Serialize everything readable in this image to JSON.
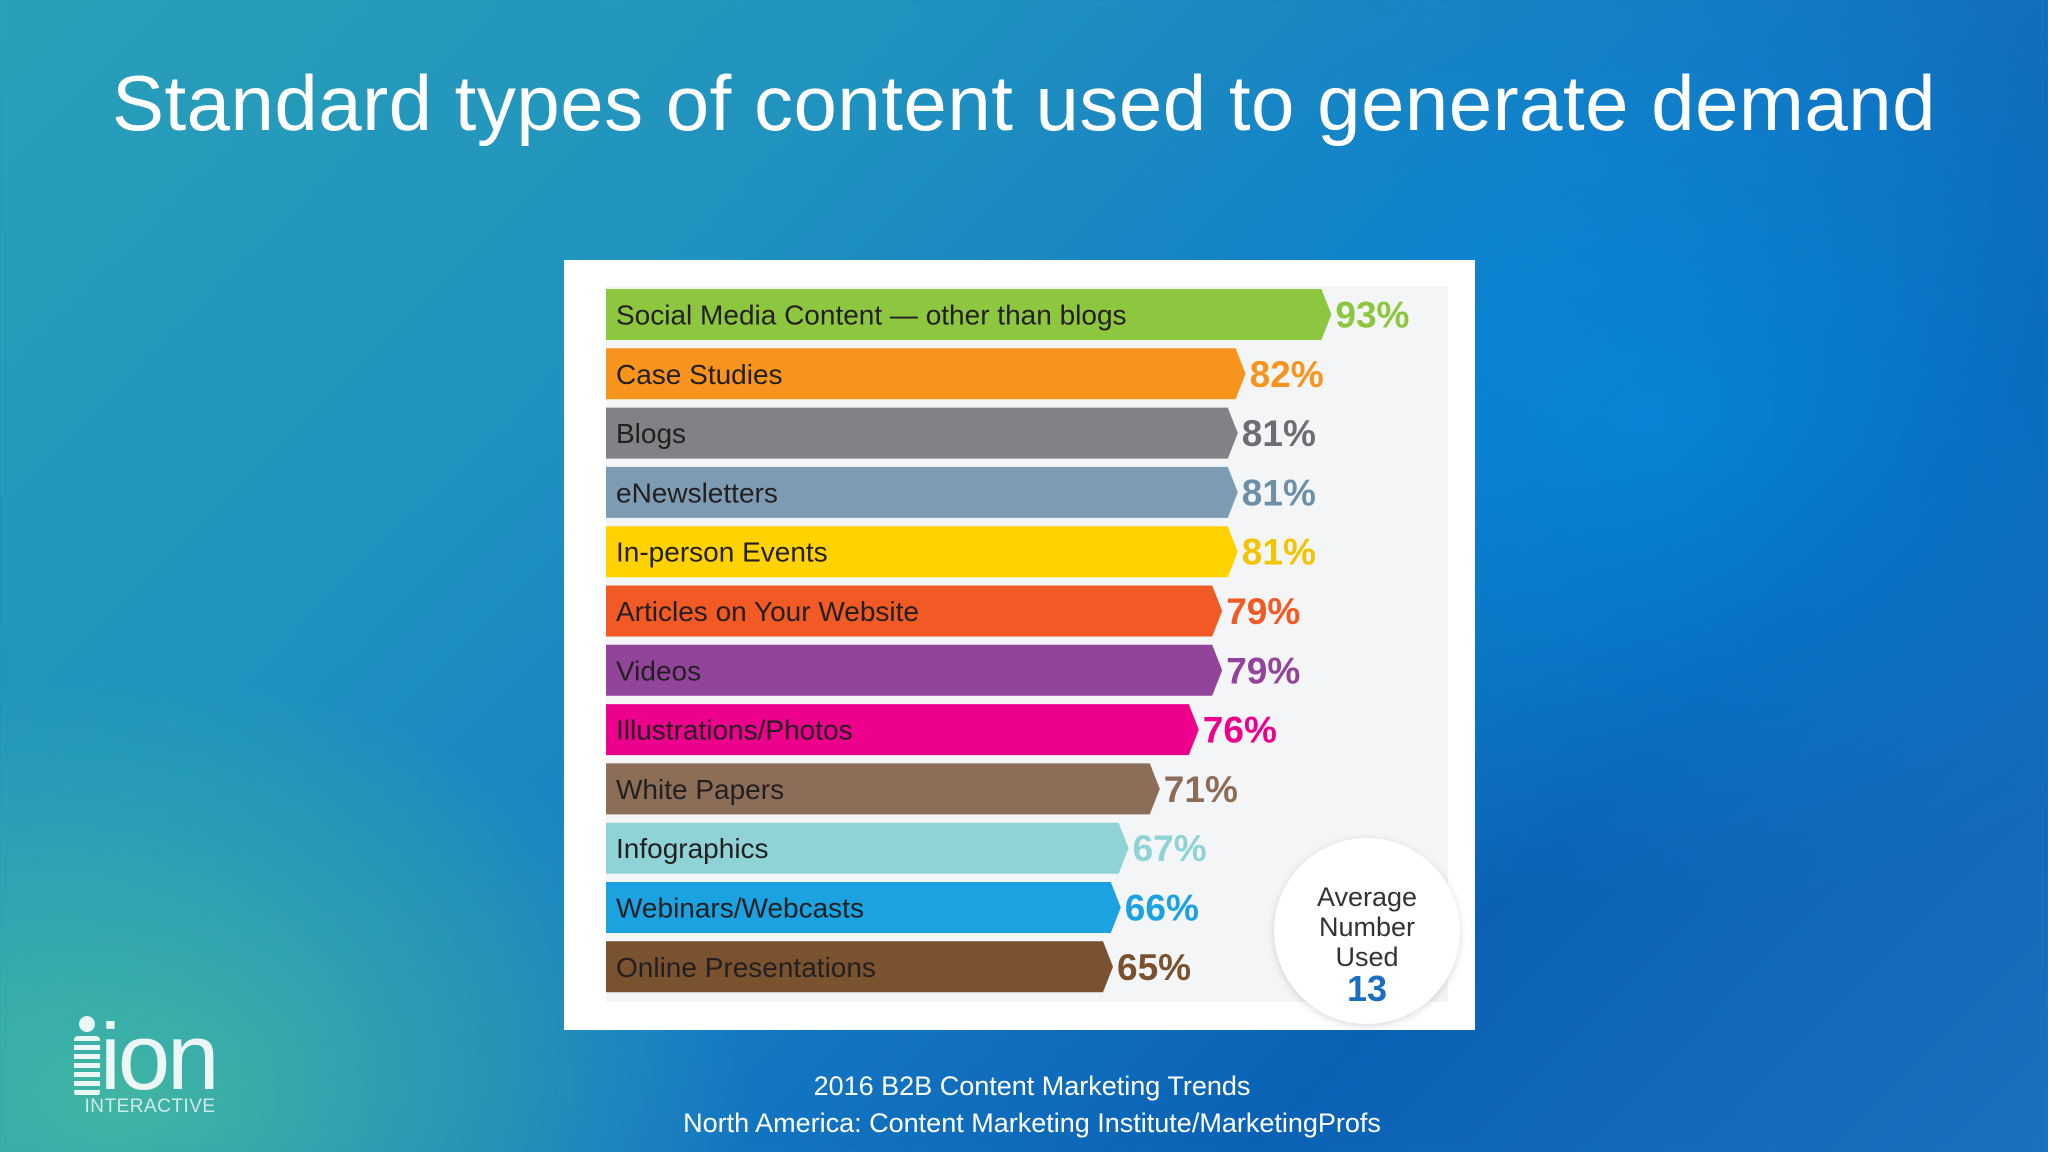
{
  "slide": {
    "title": "Standard types of content used to generate demand",
    "source_line1": "2016 B2B Content Marketing Trends",
    "source_line2": "North America: Content Marketing Institute/MarketingProfs"
  },
  "logo": {
    "word": "ion",
    "subtext": "INTERACTIVE"
  },
  "chart_data": {
    "type": "bar",
    "orientation": "horizontal",
    "title": "",
    "xlabel": "",
    "ylabel": "",
    "xlim": [
      0,
      100
    ],
    "grid": false,
    "value_suffix": "%",
    "categories": [
      "Social Media Content — other than blogs",
      "Case Studies",
      "Blogs",
      "eNewsletters",
      "In-person Events",
      "Articles on Your Website",
      "Videos",
      "Illustrations/Photos",
      "White Papers",
      "Infographics",
      "Webinars/Webcasts",
      "Online Presentations"
    ],
    "values": [
      93,
      82,
      81,
      81,
      81,
      79,
      79,
      76,
      71,
      67,
      66,
      65
    ],
    "colors": [
      "#8dc63f",
      "#f7941d",
      "#808285",
      "#7d9cb3",
      "#ffd200",
      "#f15a24",
      "#92449a",
      "#ec008c",
      "#8c6d58",
      "#8fd3d6",
      "#1aa3e0",
      "#7a5230"
    ],
    "label_colors": [
      "#8dc63f",
      "#f7941d",
      "#6d6e71",
      "#6d8fa8",
      "#f2c500",
      "#f15a24",
      "#92449a",
      "#ec008c",
      "#8c6d58",
      "#8fd3d6",
      "#1aa3e0",
      "#7a5230"
    ],
    "annotation": {
      "label": "Average Number Used",
      "value": "13"
    }
  }
}
